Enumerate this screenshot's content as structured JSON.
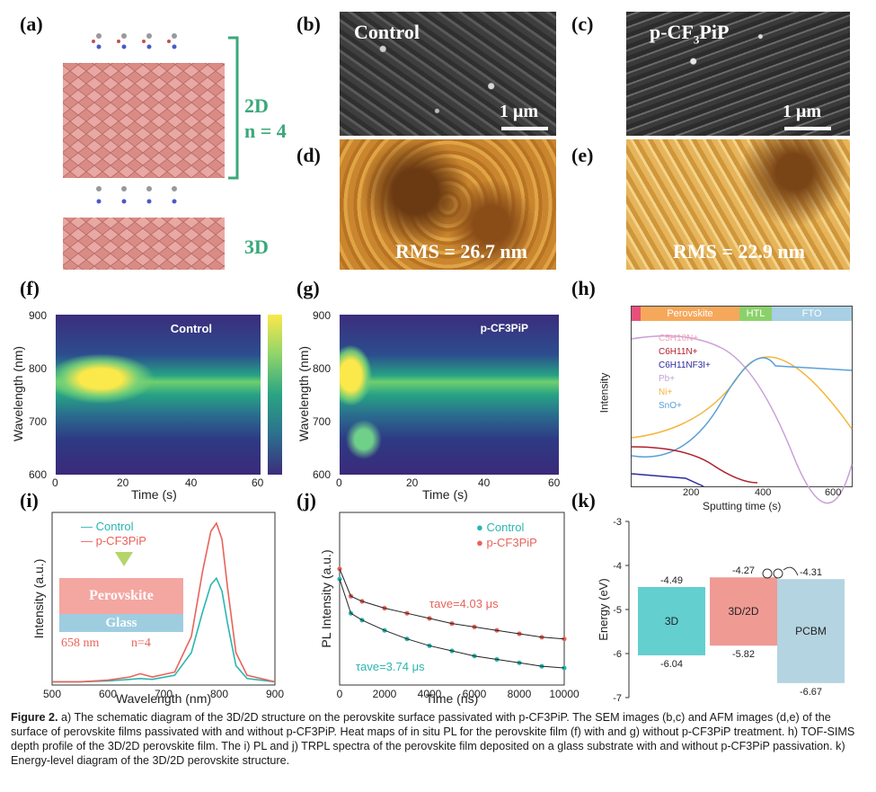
{
  "panel_labels": [
    "(a)",
    "(b)",
    "(c)",
    "(d)",
    "(e)",
    "(f)",
    "(g)",
    "(h)",
    "(i)",
    "(j)",
    "(k)"
  ],
  "panel_a": {
    "label_2d": "2D",
    "label_n": "n = 4",
    "label_3d": "3D"
  },
  "panel_b": {
    "title": "Control",
    "scale": "1 μm"
  },
  "panel_c": {
    "title": "p-CF",
    "title_sub": "3",
    "title_end": "PiP",
    "scale": "1 μm"
  },
  "panel_d": {
    "rms": "RMS = 26.7 nm"
  },
  "panel_e": {
    "rms": "RMS = 22.9 nm"
  },
  "panel_f": {
    "title": "Control",
    "xlabel": "Time (s)",
    "ylabel": "Wavelength (nm)",
    "xticks": [
      "0",
      "20",
      "40",
      "60"
    ],
    "yticks": [
      "900",
      "800",
      "700",
      "600"
    ]
  },
  "panel_g": {
    "title": "p-CF3PiP",
    "xlabel": "Time (s)",
    "ylabel": "Wavelength (nm)",
    "xticks": [
      "0",
      "20",
      "40",
      "60"
    ],
    "yticks": [
      "900",
      "800",
      "700",
      "600"
    ]
  },
  "panel_h": {
    "bands": [
      "Perovskite",
      "HTL",
      "FTO"
    ],
    "xlabel": "Sputting time (s)",
    "ylabel": "Intensity",
    "xticks": [
      "200",
      "400",
      "600"
    ],
    "legend": [
      "C5H10N+",
      "C6H11N+",
      "C6H11NF3I+",
      "Pb+",
      "Ni+",
      "SnO+"
    ],
    "legend_colors": [
      "#f2a0b5",
      "#b0202a",
      "#2a2aa0",
      "#c9a0d8",
      "#f5b53a",
      "#5aa0d8"
    ]
  },
  "chart_data": [
    {
      "type": "line",
      "title": "",
      "xlabel": "Wavelength (nm)",
      "ylabel": "Intensity (a.u.)",
      "xlim": [
        500,
        900
      ],
      "xticks": [
        500,
        600,
        700,
        800,
        900
      ],
      "series": [
        {
          "name": "Control",
          "color": "#2ab6b0",
          "x": [
            500,
            550,
            600,
            640,
            658,
            680,
            720,
            750,
            770,
            785,
            795,
            805,
            815,
            830,
            850,
            900
          ],
          "y": [
            0.02,
            0.02,
            0.025,
            0.035,
            0.04,
            0.035,
            0.06,
            0.2,
            0.45,
            0.62,
            0.66,
            0.58,
            0.38,
            0.12,
            0.04,
            0.02
          ]
        },
        {
          "name": "p-CF3PiP",
          "color": "#e8635a",
          "x": [
            500,
            550,
            600,
            640,
            658,
            680,
            720,
            750,
            770,
            785,
            795,
            805,
            815,
            830,
            850,
            900
          ],
          "y": [
            0.02,
            0.02,
            0.03,
            0.05,
            0.07,
            0.05,
            0.08,
            0.3,
            0.7,
            0.95,
            1.0,
            0.9,
            0.6,
            0.2,
            0.06,
            0.02
          ]
        }
      ],
      "annotations": [
        "658 nm",
        "n=4",
        "Perovskite",
        "Glass"
      ]
    },
    {
      "type": "scatter",
      "title": "",
      "xlabel": "Time (ns)",
      "ylabel": "PL Intensity (a.u.)",
      "xlim": [
        0,
        10000
      ],
      "xticks": [
        0,
        2000,
        4000,
        6000,
        8000,
        10000
      ],
      "series": [
        {
          "name": "Control",
          "color": "#2ab6b0",
          "tau": "τave=3.74 μs",
          "x": [
            0,
            500,
            1000,
            2000,
            3000,
            4000,
            5000,
            6000,
            7000,
            8000,
            9000,
            10000
          ],
          "y": [
            0.62,
            0.42,
            0.38,
            0.32,
            0.27,
            0.23,
            0.2,
            0.17,
            0.15,
            0.13,
            0.11,
            0.1
          ]
        },
        {
          "name": "p-CF3PiP",
          "color": "#e8635a",
          "tau": "τave=4.03 μs",
          "x": [
            0,
            500,
            1000,
            2000,
            3000,
            4000,
            5000,
            6000,
            7000,
            8000,
            9000,
            10000
          ],
          "y": [
            0.68,
            0.52,
            0.49,
            0.45,
            0.42,
            0.39,
            0.36,
            0.34,
            0.32,
            0.3,
            0.28,
            0.27
          ]
        }
      ]
    },
    {
      "type": "bar",
      "title": "",
      "ylabel": "Energy (eV)",
      "ylim": [
        -7,
        -3
      ],
      "yticks": [
        -3,
        -4,
        -5,
        -6,
        -7
      ],
      "categories": [
        "3D",
        "3D/2D",
        "PCBM"
      ],
      "cb": [
        -4.49,
        -4.27,
        -4.31
      ],
      "vb": [
        -6.04,
        -5.82,
        -6.67
      ],
      "colors": [
        "#63cfcf",
        "#f09a94",
        "#b3d4e0"
      ]
    }
  ],
  "caption": {
    "head": "Figure 2.",
    "text": "a) The schematic diagram of the 3D/2D structure on the perovskite surface passivated with p-CF3PiP. The SEM images (b,c) and AFM images (d,e) of the surface of perovskite films passivated with and without p-CF3PiP. Heat maps of in situ PL for the perovskite film (f) with and g) without p-CF3PiP treatment. h) TOF-SIMS depth profile of the 3D/2D perovskite film. The i) PL and j) TRPL spectra of the perovskite film deposited on a glass substrate with and without p-CF3PiP passivation. k) Energy-level diagram of the 3D/2D perovskite structure."
  }
}
